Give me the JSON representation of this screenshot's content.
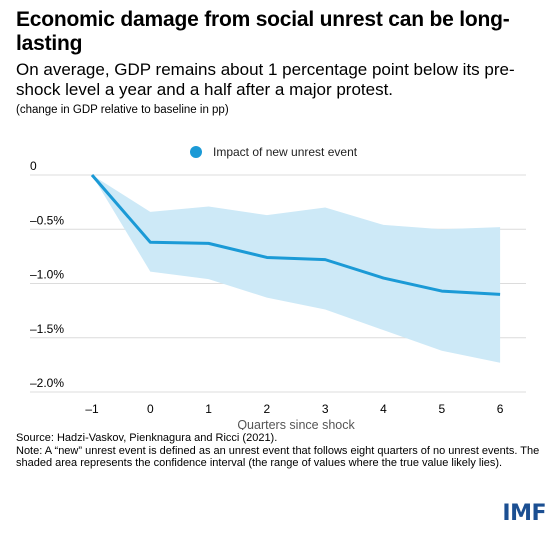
{
  "header": {
    "title": "Economic damage from social unrest can be long-lasting",
    "subtitle": "On average, GDP remains about 1 percentage point below its pre-shock level a year and a half after a major protest.",
    "units": "(change in GDP relative to baseline in pp)"
  },
  "chart_data": {
    "type": "line",
    "x": [
      -1,
      0,
      1,
      2,
      3,
      4,
      5,
      6
    ],
    "x_tick_labels": [
      "–1",
      "0",
      "1",
      "2",
      "3",
      "4",
      "5",
      "6"
    ],
    "xlabel": "Quarters since shock",
    "ylabel": "",
    "ylim": [
      -2.0,
      0.0
    ],
    "y_ticks": [
      0,
      -0.5,
      -1.0,
      -1.5,
      -2.0
    ],
    "y_tick_labels": [
      "0",
      "–0.5%",
      "–1.0%",
      "–1.5%",
      "–2.0%"
    ],
    "grid": true,
    "legend_position": "top",
    "series": [
      {
        "name": "Impact of new unrest event",
        "color": "#1b9ad6",
        "values": [
          0.0,
          -0.62,
          -0.63,
          -0.76,
          -0.78,
          -0.95,
          -1.07,
          -1.1
        ]
      }
    ],
    "confidence_band": {
      "color": "#cde9f7",
      "upper": [
        0.0,
        -0.34,
        -0.29,
        -0.37,
        -0.3,
        -0.46,
        -0.5,
        -0.48
      ],
      "lower": [
        0.0,
        -0.89,
        -0.96,
        -1.13,
        -1.24,
        -1.43,
        -1.62,
        -1.73
      ]
    }
  },
  "footer": {
    "source": "Source: Hadzi-Vaskov, Pienknagura and Ricci (2021).",
    "note": "Note: A “new” unrest event is defined as an unrest event that follows eight quarters of no unrest events. The shaded area represents the confidence interval (the range of values where the true value likely lies).",
    "logo_text": "IMF"
  }
}
